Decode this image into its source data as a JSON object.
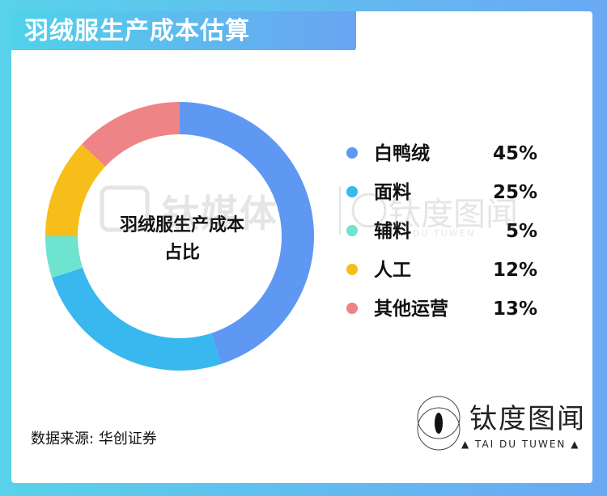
{
  "title": "羽绒服生产成本估算",
  "source": "数据来源: 华创证券",
  "chart_data": {
    "type": "pie",
    "donut": true,
    "center_label": [
      "羽绒服生产成本",
      "占比"
    ],
    "categories": [
      "白鸭绒",
      "面料",
      "辅料",
      "人工",
      "其他运营"
    ],
    "values": [
      45,
      25,
      5,
      12,
      13
    ],
    "value_labels": [
      "45%",
      "25%",
      "5%",
      "12%",
      "13%"
    ],
    "colors": [
      "#5f98f2",
      "#38b8ee",
      "#6ee3cf",
      "#f7bd1a",
      "#ef8486"
    ],
    "legend_position": "right"
  },
  "logo": {
    "name_cn": "钛度图闻",
    "name_en": "▲ TAI DU TUWEN ▲"
  },
  "watermark": {
    "brand_cn": "钛媒体",
    "brand2_cn": "钛度图闻",
    "brand2_en": "TAI DU TUWEN"
  }
}
